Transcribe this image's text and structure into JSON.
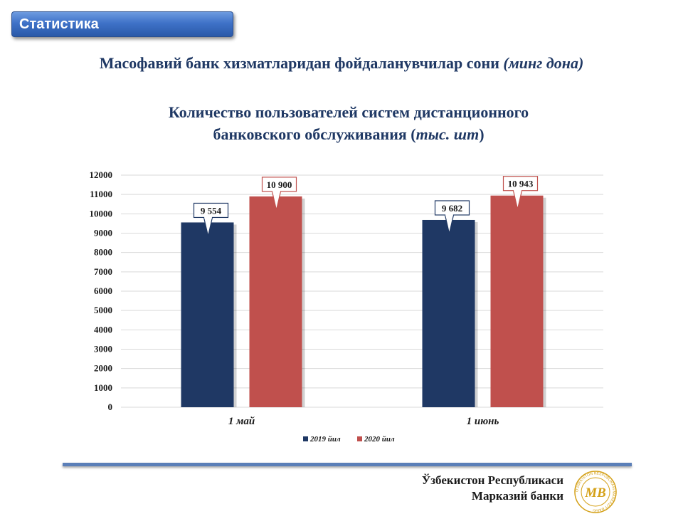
{
  "header": {
    "badge": "Статистика",
    "title_uz_main": "Масофавий банк хизматларидан фойдаланувчилар сони",
    "title_uz_unit": "(минг дона)",
    "title_ru_line1": "Количество пользователей систем дистанционного",
    "title_ru_line2_main": "банковского обслуживания (",
    "title_ru_line2_unit": "тыс. шт",
    "title_ru_line2_end": ")"
  },
  "chart_data": {
    "type": "bar",
    "categories": [
      "1 май",
      "1 июнь"
    ],
    "series": [
      {
        "name": "2019 йил",
        "values": [
          9554,
          9682
        ],
        "labels": [
          "9 554",
          "9 682"
        ],
        "color": "#1f3864"
      },
      {
        "name": "2020 йил",
        "values": [
          10900,
          10943
        ],
        "labels": [
          "10 900",
          "10 943"
        ],
        "color": "#c0504d"
      }
    ],
    "ylim": [
      0,
      12000
    ],
    "yticks": [
      0,
      1000,
      2000,
      3000,
      4000,
      5000,
      6000,
      7000,
      8000,
      9000,
      10000,
      11000,
      12000
    ],
    "grid": true,
    "legend": "bottom"
  },
  "footer": {
    "org_line1": "Ўзбекистон Республикаси",
    "org_line2": "Марказий банки"
  },
  "logo": {
    "ring_text": "O'ZBEKISTON RESPUBLIKASI MARKAZIY BANKI",
    "mark": "MB",
    "color": "#d4a017"
  }
}
